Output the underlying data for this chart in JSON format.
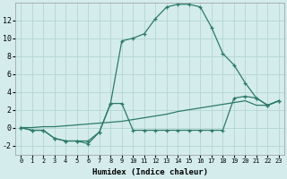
{
  "xlabel": "Humidex (Indice chaleur)",
  "background_color": "#d4ecec",
  "grid_color": "#b8d8d8",
  "line_color": "#2d7a6a",
  "x_values": [
    0,
    1,
    2,
    3,
    4,
    5,
    6,
    7,
    8,
    9,
    10,
    11,
    12,
    13,
    14,
    15,
    16,
    17,
    18,
    19,
    20,
    21,
    22,
    23
  ],
  "line1": [
    0,
    -0.3,
    -0.3,
    -1.2,
    -1.5,
    -1.5,
    -1.5,
    -0.5,
    2.7,
    2.7,
    -0.3,
    -0.3,
    -0.3,
    -0.3,
    -0.3,
    -0.3,
    -0.3,
    -0.3,
    -0.3,
    3.3,
    3.5,
    3.3,
    2.5,
    3.0
  ],
  "line2": [
    0,
    0.0,
    0.1,
    0.1,
    0.2,
    0.3,
    0.4,
    0.5,
    0.6,
    0.7,
    0.9,
    1.1,
    1.3,
    1.5,
    1.8,
    2.0,
    2.2,
    2.4,
    2.6,
    2.8,
    3.0,
    2.5,
    2.5,
    3.0
  ],
  "line3": [
    0,
    -0.3,
    -0.3,
    -1.2,
    -1.5,
    -1.5,
    -1.8,
    -0.5,
    2.7,
    9.7,
    10.0,
    10.5,
    12.2,
    13.5,
    13.8,
    13.8,
    13.5,
    11.2,
    8.3,
    7.0,
    5.0,
    3.3,
    2.5,
    3.0
  ],
  "ylim": [
    -3,
    14
  ],
  "xlim": [
    -0.5,
    23.5
  ],
  "yticks": [
    -2,
    0,
    2,
    4,
    6,
    8,
    10,
    12
  ],
  "xticks": [
    0,
    1,
    2,
    3,
    4,
    5,
    6,
    7,
    8,
    9,
    10,
    11,
    12,
    13,
    14,
    15,
    16,
    17,
    18,
    19,
    20,
    21,
    22,
    23
  ]
}
